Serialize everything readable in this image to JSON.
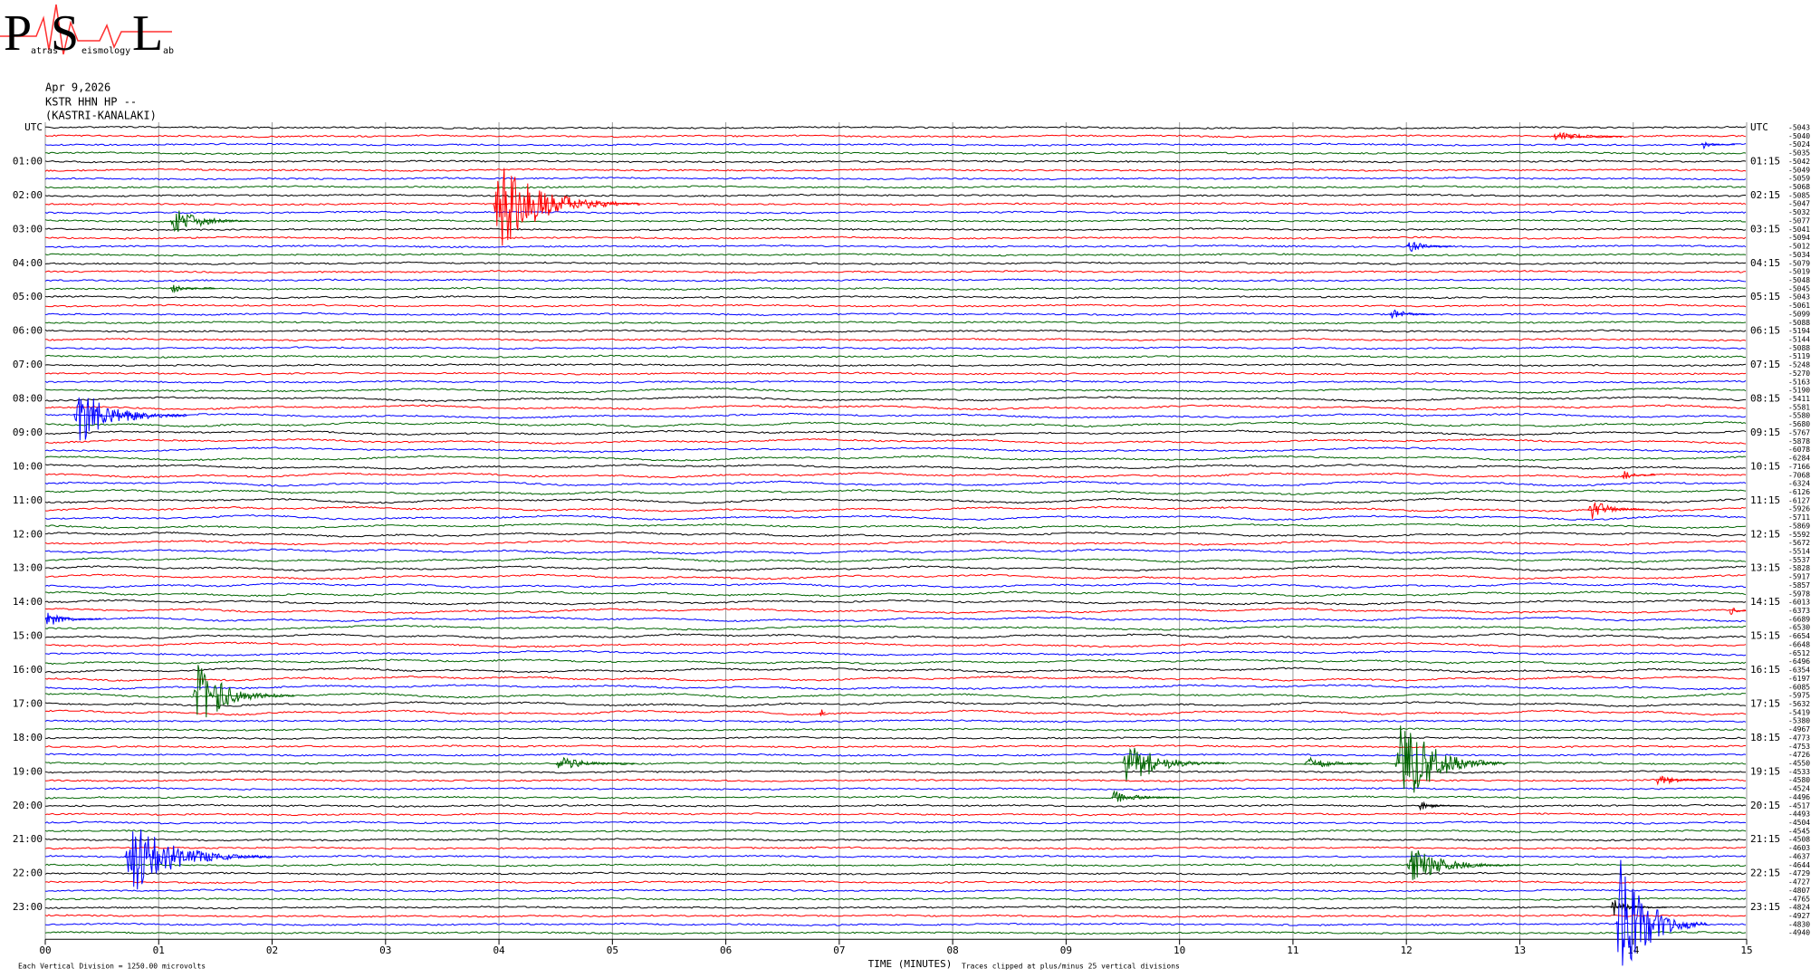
{
  "logo": {
    "letters": [
      "P",
      "S",
      "L"
    ],
    "small": [
      "atras",
      "eismology",
      "ab"
    ]
  },
  "chart_data": {
    "type": "helicorder",
    "header": [
      "Apr 9,2026",
      "KSTR HHN HP --",
      "(KASTRI-KANALAKI)"
    ],
    "xlabel": "TIME (MINUTES)",
    "scale_note": "Each Vertical Division = 1250.00 microvolts",
    "clip_note": "Traces clipped at plus/minus 25 vertical divisions",
    "colors": [
      "#000000",
      "#ff0000",
      "#0000ff",
      "#006400"
    ],
    "xlim": [
      0,
      15
    ],
    "xticks": [
      {
        "value": 0,
        "label": "00"
      },
      {
        "value": 1,
        "label": "01"
      },
      {
        "value": 2,
        "label": "02"
      },
      {
        "value": 3,
        "label": "03"
      },
      {
        "value": 4,
        "label": "04"
      },
      {
        "value": 5,
        "label": "05"
      },
      {
        "value": 6,
        "label": "06"
      },
      {
        "value": 7,
        "label": "07"
      },
      {
        "value": 8,
        "label": "08"
      },
      {
        "value": 9,
        "label": "09"
      },
      10,
      11,
      12,
      13,
      14,
      15
    ],
    "left_labels": [
      "UTC",
      "01:00",
      "02:00",
      "03:00",
      "04:00",
      "05:00",
      "06:00",
      "07:00",
      "08:00",
      "09:00",
      "10:00",
      "11:00",
      "12:00",
      "13:00",
      "14:00",
      "15:00",
      "16:00",
      "17:00",
      "18:00",
      "19:00",
      "20:00",
      "21:00",
      "22:00",
      "23:00"
    ],
    "right_labels": [
      "UTC",
      "01:15",
      "02:15",
      "03:15",
      "04:15",
      "05:15",
      "06:15",
      "07:15",
      "08:15",
      "09:15",
      "10:15",
      "11:15",
      "12:15",
      "13:15",
      "14:15",
      "15:15",
      "16:15",
      "17:15",
      "18:15",
      "19:15",
      "20:15",
      "21:15",
      "22:15",
      "23:15"
    ],
    "offsets": [
      -5043,
      -5040,
      -5024,
      -5035,
      -5042,
      -5049,
      -5059,
      -5068,
      -5085,
      -5047,
      -5032,
      -5077,
      -5041,
      -5094,
      -5012,
      -5034,
      -5079,
      -5019,
      -5048,
      -5045,
      -5043,
      -5061,
      -5099,
      -5088,
      -5194,
      -5144,
      -5088,
      -5119,
      -5248,
      -5270,
      -5163,
      -5190,
      -5411,
      -5581,
      -5580,
      -5680,
      -5767,
      -5878,
      -6078,
      -6284,
      -7166,
      -7068,
      -6324,
      -6126,
      -6127,
      -5926,
      -5711,
      -5869,
      -5592,
      -5672,
      -5514,
      -5537,
      -5828,
      -5917,
      -5857,
      -5978,
      -6013,
      -6373,
      -6689,
      -6530,
      -6654,
      -6648,
      -6512,
      -6496,
      -6354,
      -6197,
      -6085,
      -5975,
      -5632,
      -5419,
      -5380,
      -4967,
      -4773,
      -4753,
      -4726,
      -4550,
      -4533,
      -4580,
      -4524,
      -4496,
      -4517,
      -4493,
      -4504,
      -4545,
      -4508,
      -4603,
      -4637,
      -4644,
      -4729,
      -4727,
      -4807,
      -4765,
      -4824,
      -4927,
      -4830,
      -4940
    ],
    "events": [
      {
        "trace": 1,
        "minute": 13.3,
        "duration": 0.6,
        "amplitude": 0.8
      },
      {
        "trace": 2,
        "minute": 14.6,
        "duration": 0.3,
        "amplitude": 0.5
      },
      {
        "trace": 9,
        "minute": 3.95,
        "duration": 1.3,
        "amplitude": 5.5
      },
      {
        "trace": 11,
        "minute": 1.1,
        "duration": 0.7,
        "amplitude": 2.2
      },
      {
        "trace": 14,
        "minute": 12.0,
        "duration": 0.4,
        "amplitude": 0.9
      },
      {
        "trace": 19,
        "minute": 1.1,
        "duration": 0.4,
        "amplitude": 0.6
      },
      {
        "trace": 22,
        "minute": 11.85,
        "duration": 0.4,
        "amplitude": 0.8
      },
      {
        "trace": 34,
        "minute": 0.25,
        "duration": 1.0,
        "amplitude": 3.5
      },
      {
        "trace": 41,
        "minute": 13.9,
        "duration": 0.3,
        "amplitude": 0.6
      },
      {
        "trace": 45,
        "minute": 13.6,
        "duration": 0.5,
        "amplitude": 1.5
      },
      {
        "trace": 57,
        "minute": 14.85,
        "duration": 0.15,
        "amplitude": 0.8
      },
      {
        "trace": 58,
        "minute": 0.0,
        "duration": 0.5,
        "amplitude": 1.0
      },
      {
        "trace": 67,
        "minute": 1.3,
        "duration": 0.9,
        "amplitude": 4.0
      },
      {
        "trace": 69,
        "minute": 6.83,
        "duration": 0.05,
        "amplitude": 1.2
      },
      {
        "trace": 75,
        "minute": 4.5,
        "duration": 0.7,
        "amplitude": 1.0
      },
      {
        "trace": 75,
        "minute": 9.5,
        "duration": 0.9,
        "amplitude": 3.0
      },
      {
        "trace": 75,
        "minute": 11.1,
        "duration": 0.6,
        "amplitude": 1.0
      },
      {
        "trace": 75,
        "minute": 11.9,
        "duration": 1.0,
        "amplitude": 6.0
      },
      {
        "trace": 77,
        "minute": 14.2,
        "duration": 0.5,
        "amplitude": 0.7
      },
      {
        "trace": 79,
        "minute": 9.4,
        "duration": 0.6,
        "amplitude": 0.9
      },
      {
        "trace": 80,
        "minute": 12.1,
        "duration": 0.4,
        "amplitude": 0.6
      },
      {
        "trace": 86,
        "minute": 0.7,
        "duration": 1.3,
        "amplitude": 4.5
      },
      {
        "trace": 87,
        "minute": 12.0,
        "duration": 1.0,
        "amplitude": 2.2
      },
      {
        "trace": 92,
        "minute": 13.8,
        "duration": 0.5,
        "amplitude": 1.0
      },
      {
        "trace": 94,
        "minute": 13.85,
        "duration": 0.8,
        "amplitude": 9.0
      }
    ]
  }
}
